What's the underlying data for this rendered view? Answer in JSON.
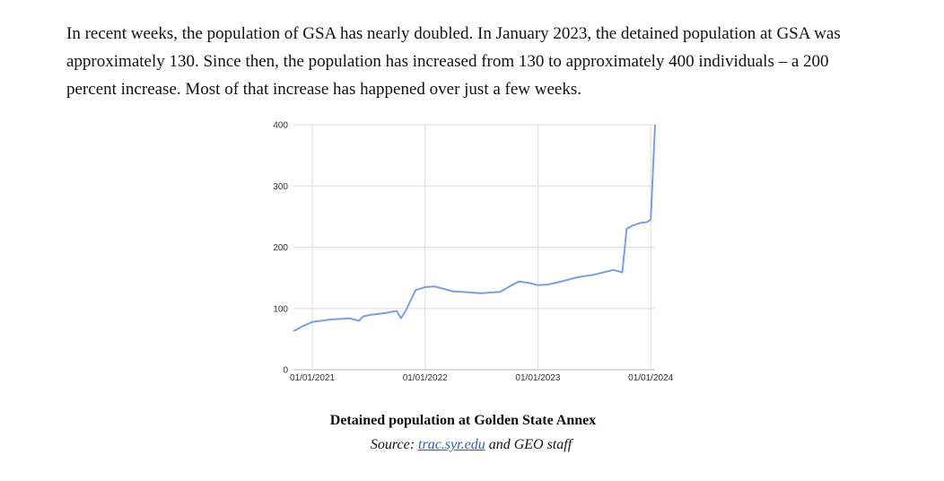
{
  "paragraph": "In recent weeks, the population of GSA has nearly doubled. In January 2023, the detained population at GSA was approximately 130. Since then, the population has increased from 130 to approximately 400 individuals – a 200 percent increase. Most of that increase has happened over just a few weeks.",
  "caption": {
    "title": "Detained population at Golden State Annex",
    "source_prefix": "Source:",
    "source_link": "trac.syr.edu",
    "source_suffix": "and GEO staff"
  },
  "colors": {
    "line": "#7b9fe3",
    "grid": "#dddddd",
    "axis": "#bbbbbb",
    "link": "#2f5fb3"
  },
  "chart_data": {
    "type": "line",
    "title": "",
    "xlabel": "",
    "ylabel": "",
    "ylim": [
      0,
      400
    ],
    "yticks": [
      0,
      100,
      200,
      300,
      400
    ],
    "xticks": [
      "01/01/2021",
      "01/01/2022",
      "01/01/2023",
      "01/01/2024"
    ],
    "xlim": [
      "2020-11-01",
      "2024-01-15"
    ],
    "grid": true,
    "series": [
      {
        "x": [
          "2020-11-01",
          "2020-12-01",
          "2021-01-01",
          "2021-02-01",
          "2021-03-01",
          "2021-04-01",
          "2021-05-01",
          "2021-06-01",
          "2021-06-15",
          "2021-07-01",
          "2021-08-01",
          "2021-09-01",
          "2021-10-01",
          "2021-10-15",
          "2021-11-01",
          "2021-12-01",
          "2022-01-01",
          "2022-02-01",
          "2022-03-01",
          "2022-04-01",
          "2022-05-01",
          "2022-06-01",
          "2022-07-01",
          "2022-08-01",
          "2022-09-01",
          "2022-10-01",
          "2022-11-01",
          "2022-12-01",
          "2023-01-01",
          "2023-02-01",
          "2023-03-01",
          "2023-04-01",
          "2023-05-01",
          "2023-06-01",
          "2023-07-01",
          "2023-08-01",
          "2023-09-01",
          "2023-10-01",
          "2023-10-15",
          "2023-11-01",
          "2023-12-01",
          "2023-12-20",
          "2024-01-01",
          "2024-01-15"
        ],
        "values": [
          63,
          71,
          78,
          80,
          82,
          83,
          84,
          80,
          87,
          89,
          91,
          93,
          96,
          84,
          98,
          130,
          135,
          136,
          132,
          128,
          127,
          126,
          125,
          126,
          127,
          136,
          144,
          142,
          138,
          139,
          142,
          146,
          150,
          153,
          155,
          159,
          163,
          159,
          230,
          235,
          240,
          241,
          245,
          400
        ]
      }
    ]
  }
}
